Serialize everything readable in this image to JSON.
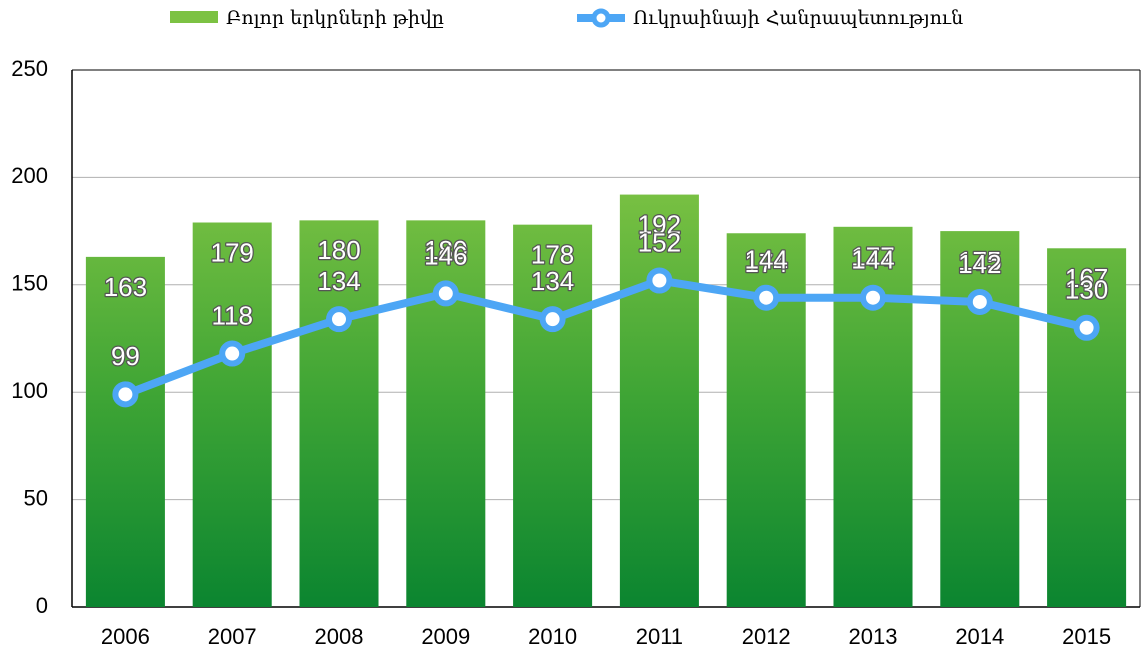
{
  "chart_data": {
    "type": "bar",
    "categories": [
      "2006",
      "2007",
      "2008",
      "2009",
      "2010",
      "2011",
      "2012",
      "2013",
      "2014",
      "2015"
    ],
    "series": [
      {
        "name": "Բոլոր երկրների թիվը",
        "type": "bar",
        "color": "#3fa535",
        "values": [
          163,
          179,
          180,
          180,
          178,
          192,
          174,
          177,
          175,
          167
        ]
      },
      {
        "name": "Ուկրաինայի Հանրապետություն",
        "type": "line",
        "color": "#4da6f5",
        "values": [
          99,
          118,
          134,
          146,
          134,
          152,
          144,
          144,
          142,
          130
        ]
      }
    ],
    "ylim": [
      0,
      250
    ],
    "yticks": [
      0,
      50,
      100,
      150,
      200,
      250
    ],
    "grid": true,
    "legend": "top"
  }
}
